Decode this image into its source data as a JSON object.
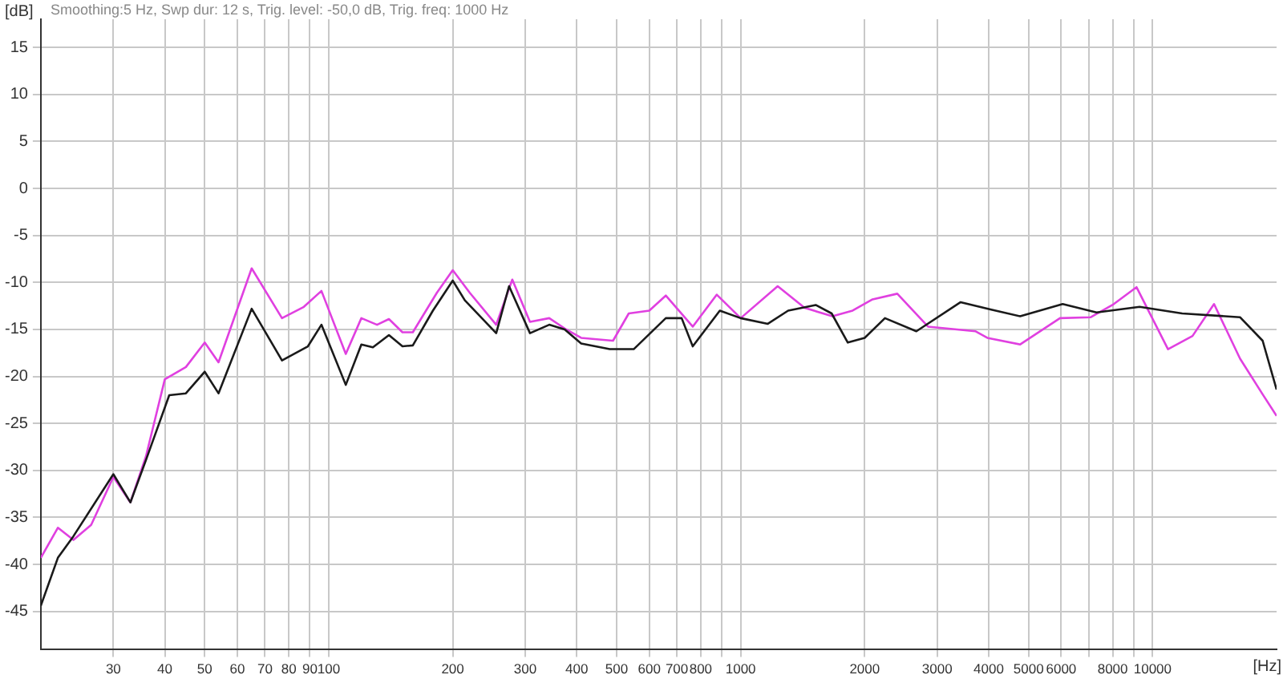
{
  "chart_data": {
    "type": "line",
    "xlabel": "[Hz]",
    "ylabel": "[dB]",
    "annotations": [
      "Smoothing:5 Hz, Swp dur: 12 s, Trig. level: -50,0 dB, Trig. freq: 1000 Hz"
    ],
    "log": "x",
    "grid": true,
    "legend": false,
    "marker": "none",
    "line_style": "solid",
    "xlim": [
      20,
      20000
    ],
    "ylim": [
      -49,
      18
    ],
    "xticks": [
      30,
      40,
      50,
      60,
      70,
      80,
      90,
      100,
      200,
      300,
      400,
      500,
      600,
      700,
      800,
      {
        "value": 900,
        "label": null
      },
      1000,
      2000,
      3000,
      4000,
      5000,
      6000,
      {
        "value": 7000,
        "label": null
      },
      8000,
      {
        "value": 9000,
        "label": null
      },
      10000
    ],
    "yticks": [
      15,
      10,
      5,
      0,
      -5,
      -10,
      -15,
      -20,
      -25,
      -30,
      -35,
      -40,
      -45
    ],
    "series": [
      {
        "color": "#1a1a1a",
        "x": [
          20,
          22,
          24,
          30,
          33,
          36,
          41,
          45,
          50,
          54,
          65,
          77,
          89,
          96,
          110,
          120,
          128,
          140,
          151,
          160,
          179,
          200,
          214,
          255,
          274,
          308,
          343,
          374,
          410,
          481,
          550,
          658,
          719,
          765,
          890,
          1000,
          1164,
          1304,
          1521,
          1663,
          1820,
          2000,
          2240,
          2670,
          3420,
          4060,
          4770,
          6050,
          7310,
          9300,
          11800,
          16300,
          18500,
          20000
        ],
        "values": [
          -44.4,
          -39.3,
          -37,
          -30.4,
          -33.4,
          -28.9,
          -22,
          -21.8,
          -19.5,
          -21.8,
          -12.8,
          -18.3,
          -16.8,
          -14.5,
          -20.9,
          -16.6,
          -16.9,
          -15.6,
          -16.8,
          -16.7,
          -13,
          -9.8,
          -11.9,
          -15.4,
          -10.4,
          -15.4,
          -14.5,
          -15,
          -16.5,
          -17.1,
          -17.1,
          -13.8,
          -13.8,
          -16.8,
          -13,
          -13.8,
          -14.4,
          -13,
          -12.4,
          -13.3,
          -16.4,
          -15.9,
          -13.8,
          -15.2,
          -12.1,
          -12.9,
          -13.6,
          -12.3,
          -13.2,
          -12.6,
          -13.3,
          -13.7,
          -16.2,
          -21.4
        ]
      },
      {
        "color": "#e040e0",
        "x": [
          20,
          22,
          24,
          26.5,
          30,
          33,
          36,
          40,
          45,
          50,
          54,
          65,
          77,
          87,
          96,
          110,
          120,
          131,
          140,
          151,
          160,
          183,
          200,
          220,
          255,
          279,
          308,
          343,
          374,
          410,
          490,
          535,
          600,
          658,
          765,
          875,
          1000,
          1230,
          1430,
          1670,
          1870,
          2090,
          2400,
          2850,
          3720,
          3970,
          4770,
          5960,
          7080,
          7990,
          9140,
          10900,
          12500,
          14100,
          16300,
          18500,
          20000
        ],
        "values": [
          -39.3,
          -36.1,
          -37.4,
          -35.8,
          -30.7,
          -33.4,
          -28.5,
          -20.3,
          -19,
          -16.4,
          -18.5,
          -8.5,
          -13.8,
          -12.6,
          -10.9,
          -17.6,
          -13.8,
          -14.5,
          -13.9,
          -15.3,
          -15.3,
          -11.1,
          -8.7,
          -11.1,
          -14.5,
          -9.7,
          -14.2,
          -13.8,
          -14.9,
          -15.9,
          -16.2,
          -13.3,
          -13,
          -11.4,
          -14.7,
          -11.3,
          -13.8,
          -10.4,
          -12.7,
          -13.6,
          -13,
          -11.8,
          -11.2,
          -14.7,
          -15.2,
          -15.9,
          -16.6,
          -13.8,
          -13.7,
          -12.4,
          -10.5,
          -17.1,
          -15.7,
          -12.3,
          -18.1,
          -21.9,
          -24.2
        ]
      }
    ]
  }
}
